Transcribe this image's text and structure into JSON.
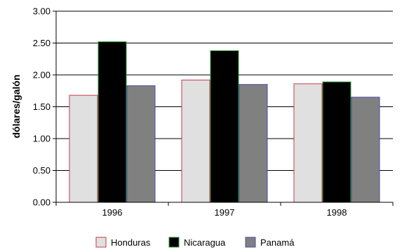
{
  "chart_data": {
    "type": "bar",
    "title": "",
    "xlabel": "",
    "ylabel": "dólares/galón",
    "categories": [
      "1996",
      "1997",
      "1998"
    ],
    "ylim": [
      0,
      3.0
    ],
    "yticks": [
      "0.00",
      "0.50",
      "1.00",
      "1.50",
      "2.00",
      "2.50",
      "3.00"
    ],
    "grid": true,
    "legend_position": "bottom",
    "series": [
      {
        "name": "Honduras",
        "values": [
          1.68,
          1.92,
          1.86
        ],
        "fill": "#e0e0e0",
        "stroke": "#c8384a"
      },
      {
        "name": "Nicaragua",
        "values": [
          2.52,
          2.38,
          1.89
        ],
        "fill": "#000000",
        "stroke": "#2e9b3c"
      },
      {
        "name": "Panamá",
        "values": [
          1.83,
          1.85,
          1.65
        ],
        "fill": "#808080",
        "stroke": "#4a4aa8"
      }
    ]
  }
}
